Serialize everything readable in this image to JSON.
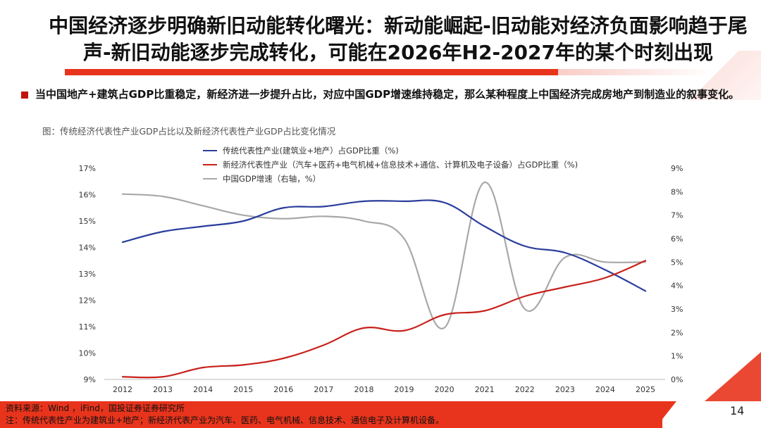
{
  "title": "中国经济逐步明确新旧动能转化曙光：新动能崛起-旧动能对经济负面影响趋于尾声-新旧动能逐步完成转化，可能在2026年H2-2027年的某个时刻出现",
  "bullet": "当中国地产+建筑占GDP比重稳定，新经济进一步提升占比，对应中国GDP增速维持稳定，那么某种程度上中国经济完成房地产到制造业的叙事变化。",
  "figure_caption": "图：传统经济代表性产业GDP占比以及新经济代表性产业GDP占比变化情况",
  "footer": {
    "source": "资料来源：Wind ，iFind，国投证券证券研究所",
    "note": "注：传统代表性产业为建筑业+地产；新经济代表产业为汽车、医药、电气机械、信息技术、通信电子及计算机设备。",
    "page_number": "14"
  },
  "colors": {
    "accent": "#e8341c",
    "traditional": "#2a3d9c",
    "new_economy": "#c8201a",
    "gdp_growth": "#a8a8a8"
  },
  "chart_data": {
    "type": "line",
    "x": [
      "2012",
      "2013",
      "2014",
      "2015",
      "2016",
      "2017",
      "2018",
      "2019",
      "2020",
      "2021",
      "2022",
      "2023",
      "2024",
      "2025"
    ],
    "y_left": {
      "range": [
        9,
        17
      ],
      "ticks": [
        "9%",
        "10%",
        "11%",
        "12%",
        "13%",
        "14%",
        "15%",
        "16%",
        "17%"
      ]
    },
    "y_right": {
      "range": [
        0,
        9
      ],
      "ticks": [
        "0%",
        "1%",
        "2%",
        "3%",
        "4%",
        "5%",
        "6%",
        "7%",
        "8%",
        "9%"
      ]
    },
    "legend_position": "top-left",
    "grid": false,
    "series": [
      {
        "name": "传统代表性产业(建筑业+地产）占GDP比重（%)",
        "axis": "left",
        "color": "#2a3d9c",
        "values": [
          14.2,
          14.6,
          14.8,
          15.0,
          15.5,
          15.55,
          15.75,
          15.75,
          15.7,
          14.8,
          14.05,
          13.8,
          13.15,
          12.35
        ]
      },
      {
        "name": "新经济代表性产业（汽车+医药+电气机械+信息技术+通信、计算机及电子设备）占GDP比重（%)",
        "axis": "left",
        "color": "#c8201a",
        "values": [
          9.1,
          9.1,
          9.45,
          9.55,
          9.8,
          10.3,
          10.95,
          10.85,
          11.45,
          11.6,
          12.15,
          12.5,
          12.85,
          13.5
        ]
      },
      {
        "name": "中国GDP增速（右轴，%）",
        "axis": "right",
        "color": "#a8a8a8",
        "values": [
          7.9,
          7.8,
          7.4,
          7.0,
          6.85,
          6.95,
          6.75,
          6.0,
          2.2,
          8.4,
          3.0,
          5.2,
          5.0,
          5.0
        ]
      }
    ]
  }
}
